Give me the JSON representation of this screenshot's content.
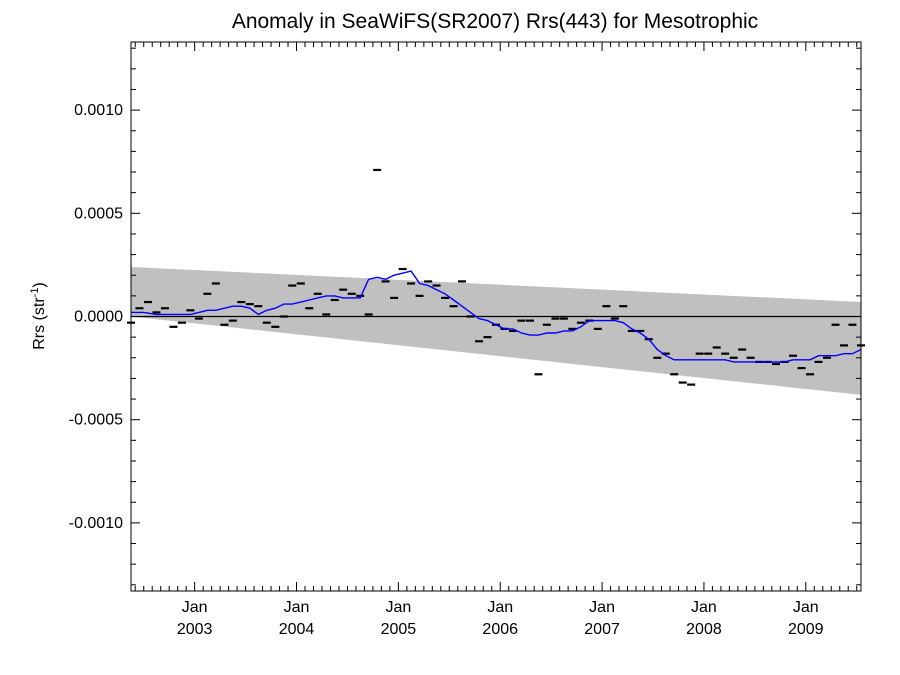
{
  "chart_data": {
    "type": "line",
    "title": "Anomaly in SeaWiFS(SR2007) Rrs(443) for Mesotrophic",
    "ylabel": "Rrs (str",
    "ylabel_exponent": "-1",
    "ylabel_close": ")",
    "xlabel": "",
    "xlim": [
      2002.375,
      2009.542
    ],
    "ylim": [
      -0.00133,
      0.00133
    ],
    "grid": false,
    "x_ticks": [
      {
        "x": 2003.0,
        "month": "Jan",
        "year": "2003"
      },
      {
        "x": 2004.0,
        "month": "Jan",
        "year": "2004"
      },
      {
        "x": 2005.0,
        "month": "Jan",
        "year": "2005"
      },
      {
        "x": 2006.0,
        "month": "Jan",
        "year": "2006"
      },
      {
        "x": 2007.0,
        "month": "Jan",
        "year": "2007"
      },
      {
        "x": 2008.0,
        "month": "Jan",
        "year": "2008"
      },
      {
        "x": 2009.0,
        "month": "Jan",
        "year": "2009"
      }
    ],
    "y_ticks": [
      {
        "value": 0.001,
        "label": "0.0010"
      },
      {
        "value": 0.0005,
        "label": "0.0005"
      },
      {
        "value": 0.0,
        "label": "0.0000"
      },
      {
        "value": -0.0005,
        "label": "-0.0005"
      },
      {
        "value": -0.001,
        "label": "-0.0010"
      }
    ],
    "confidence_band": {
      "color": "#c0c0c0",
      "upper": [
        [
          2002.375,
          0.00024
        ],
        [
          2009.542,
          7e-05
        ]
      ],
      "lower": [
        [
          2002.375,
          0.0
        ],
        [
          2009.542,
          -0.00038
        ]
      ]
    },
    "zero_line": {
      "value": 0.0,
      "color": "#000000"
    },
    "series": [
      {
        "kind": "monthly_anomaly",
        "color": "#000000",
        "marker": "dash",
        "x": [
          2002.375,
          2002.458,
          2002.542,
          2002.625,
          2002.708,
          2002.792,
          2002.875,
          2002.958,
          2003.042,
          2003.125,
          2003.208,
          2003.292,
          2003.375,
          2003.458,
          2003.542,
          2003.625,
          2003.708,
          2003.792,
          2003.875,
          2003.958,
          2004.042,
          2004.125,
          2004.208,
          2004.292,
          2004.375,
          2004.458,
          2004.542,
          2004.625,
          2004.708,
          2004.792,
          2004.875,
          2004.958,
          2005.042,
          2005.125,
          2005.208,
          2005.292,
          2005.375,
          2005.458,
          2005.542,
          2005.625,
          2005.708,
          2005.792,
          2005.875,
          2005.958,
          2006.042,
          2006.125,
          2006.208,
          2006.292,
          2006.375,
          2006.458,
          2006.542,
          2006.625,
          2006.708,
          2006.792,
          2006.875,
          2006.958,
          2007.042,
          2007.125,
          2007.208,
          2007.292,
          2007.375,
          2007.458,
          2007.542,
          2007.625,
          2007.708,
          2007.792,
          2007.875,
          2007.958,
          2008.042,
          2008.125,
          2008.208,
          2008.292,
          2008.375,
          2008.458,
          2008.542,
          2008.625,
          2008.708,
          2008.792,
          2008.875,
          2008.958,
          2009.042,
          2009.125,
          2009.208,
          2009.292,
          2009.375,
          2009.458,
          2009.542
        ],
        "values": [
          -3e-05,
          4e-05,
          7e-05,
          2e-05,
          4e-05,
          -5e-05,
          -3e-05,
          3e-05,
          -1e-05,
          0.00011,
          0.00016,
          -4e-05,
          -2e-05,
          7e-05,
          6e-05,
          5e-05,
          -3e-05,
          -5e-05,
          0.0,
          0.00015,
          0.00016,
          4e-05,
          0.00011,
          1e-05,
          8e-05,
          0.00013,
          0.00011,
          0.0001,
          1e-05,
          0.00071,
          0.00017,
          9e-05,
          0.00023,
          0.00016,
          0.0001,
          0.00017,
          0.00015,
          9e-05,
          5e-05,
          0.00017,
          0.0,
          -0.00012,
          -0.0001,
          -4e-05,
          -6e-05,
          -7e-05,
          -2e-05,
          -2e-05,
          -0.00028,
          -4e-05,
          -1e-05,
          -1e-05,
          -6e-05,
          -3e-05,
          -2e-05,
          -6e-05,
          5e-05,
          -1e-05,
          5e-05,
          -7e-05,
          -7e-05,
          -0.00011,
          -0.0002,
          -0.00018,
          -0.00028,
          -0.00032,
          -0.00033,
          -0.00018,
          -0.00018,
          -0.00015,
          -0.00018,
          -0.0002,
          -0.00016,
          -0.0002,
          -0.00022,
          -0.00022,
          -0.00023,
          -0.00022,
          -0.00019,
          -0.00025,
          -0.00028,
          -0.00022,
          -0.0002,
          -4e-05,
          -0.00014,
          -4e-05,
          -0.00014
        ]
      },
      {
        "kind": "running_mean",
        "color": "#0000ff",
        "x": [
          2002.375,
          2002.5,
          2002.625,
          2002.75,
          2002.875,
          2002.958,
          2003.042,
          2003.125,
          2003.208,
          2003.292,
          2003.375,
          2003.458,
          2003.542,
          2003.625,
          2003.708,
          2003.792,
          2003.875,
          2003.958,
          2004.042,
          2004.125,
          2004.208,
          2004.292,
          2004.375,
          2004.458,
          2004.542,
          2004.625,
          2004.708,
          2004.792,
          2004.875,
          2004.958,
          2005.042,
          2005.125,
          2005.208,
          2005.292,
          2005.375,
          2005.458,
          2005.542,
          2005.625,
          2005.708,
          2005.792,
          2005.875,
          2005.958,
          2006.042,
          2006.125,
          2006.208,
          2006.292,
          2006.375,
          2006.458,
          2006.542,
          2006.625,
          2006.708,
          2006.792,
          2006.875,
          2006.958,
          2007.042,
          2007.125,
          2007.208,
          2007.292,
          2007.375,
          2007.458,
          2007.542,
          2007.625,
          2007.708,
          2007.792,
          2007.875,
          2007.958,
          2008.042,
          2008.125,
          2008.208,
          2008.292,
          2008.375,
          2008.458,
          2008.542,
          2008.625,
          2008.708,
          2008.792,
          2008.875,
          2008.958,
          2009.042,
          2009.125,
          2009.208,
          2009.292,
          2009.375,
          2009.458,
          2009.542
        ],
        "values": [
          2e-05,
          2e-05,
          1e-05,
          1e-05,
          1e-05,
          1e-05,
          2e-05,
          3e-05,
          3e-05,
          4e-05,
          5e-05,
          5e-05,
          4e-05,
          1e-05,
          3e-05,
          4e-05,
          6e-05,
          6e-05,
          7e-05,
          8e-05,
          9e-05,
          0.0001,
          0.0001,
          9e-05,
          9e-05,
          9e-05,
          0.00018,
          0.00019,
          0.00018,
          0.0002,
          0.00021,
          0.00022,
          0.00016,
          0.00015,
          0.00013,
          0.00011,
          8e-05,
          5e-05,
          2e-05,
          -1e-05,
          -2e-05,
          -4e-05,
          -6e-05,
          -6e-05,
          -8e-05,
          -9e-05,
          -9e-05,
          -8e-05,
          -8e-05,
          -7e-05,
          -7e-05,
          -5e-05,
          -2e-05,
          -2e-05,
          -2e-05,
          -2e-05,
          -3e-05,
          -6e-05,
          -8e-05,
          -0.00011,
          -0.00016,
          -0.00019,
          -0.00021,
          -0.00021,
          -0.00021,
          -0.00021,
          -0.00021,
          -0.00021,
          -0.00021,
          -0.00022,
          -0.00022,
          -0.00022,
          -0.00022,
          -0.00022,
          -0.00022,
          -0.00022,
          -0.00021,
          -0.00021,
          -0.00021,
          -0.00019,
          -0.00019,
          -0.00019,
          -0.00018,
          -0.00018,
          -0.00016
        ]
      }
    ]
  }
}
